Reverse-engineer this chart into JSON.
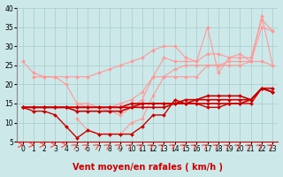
{
  "x": [
    0,
    1,
    2,
    3,
    4,
    5,
    6,
    7,
    8,
    9,
    10,
    11,
    12,
    13,
    14,
    15,
    16,
    17,
    18,
    19,
    20,
    21,
    22,
    23
  ],
  "series": [
    {
      "name": "light_top1",
      "color": "#ff9999",
      "lw": 0.8,
      "marker": "D",
      "ms": 2.0,
      "y": [
        26,
        23,
        22,
        22,
        22,
        22,
        22,
        23,
        24,
        25,
        26,
        27,
        29,
        30,
        30,
        27,
        26,
        35,
        23,
        27,
        27,
        27,
        37,
        34
      ]
    },
    {
      "name": "light_mid1",
      "color": "#ff9999",
      "lw": 0.8,
      "marker": "D",
      "ms": 2.0,
      "y": [
        null,
        22,
        22,
        22,
        20,
        15,
        14,
        14,
        14,
        15,
        16,
        18,
        22,
        27,
        26,
        26,
        26,
        28,
        28,
        27,
        28,
        26,
        35,
        34
      ]
    },
    {
      "name": "light_mid2",
      "color": "#ff9999",
      "lw": 0.8,
      "marker": "D",
      "ms": 2.0,
      "y": [
        null,
        null,
        null,
        null,
        null,
        15,
        15,
        14,
        13,
        12,
        14,
        16,
        22,
        22,
        24,
        25,
        25,
        25,
        25,
        26,
        26,
        26,
        26,
        25
      ]
    },
    {
      "name": "light_low",
      "color": "#ff9999",
      "lw": 0.8,
      "marker": "D",
      "ms": 2.0,
      "y": [
        null,
        null,
        null,
        null,
        null,
        11,
        8,
        7,
        7,
        7,
        10,
        11,
        17,
        22,
        22,
        22,
        22,
        25,
        25,
        25,
        25,
        26,
        38,
        25
      ]
    },
    {
      "name": "dark_bottom",
      "color": "#cc0000",
      "lw": 1.0,
      "marker": "D",
      "ms": 2.0,
      "y": [
        14,
        13,
        13,
        12,
        9,
        6,
        8,
        7,
        7,
        7,
        7,
        9,
        12,
        12,
        16,
        15,
        15,
        14,
        14,
        15,
        15,
        15,
        19,
        18
      ]
    },
    {
      "name": "dark_flat1",
      "color": "#cc0000",
      "lw": 1.2,
      "marker": "D",
      "ms": 2.0,
      "y": [
        14,
        14,
        14,
        14,
        14,
        14,
        14,
        14,
        14,
        14,
        15,
        15,
        15,
        15,
        15,
        16,
        16,
        17,
        17,
        17,
        17,
        16,
        19,
        19
      ]
    },
    {
      "name": "dark_flat2",
      "color": "#cc0000",
      "lw": 1.2,
      "marker": "D",
      "ms": 2.0,
      "y": [
        14,
        14,
        14,
        14,
        14,
        14,
        14,
        14,
        14,
        14,
        14,
        15,
        15,
        15,
        15,
        15,
        16,
        16,
        16,
        16,
        16,
        16,
        19,
        18
      ]
    },
    {
      "name": "dark_flat3",
      "color": "#cc0000",
      "lw": 1.2,
      "marker": "D",
      "ms": 2.0,
      "y": [
        14,
        14,
        14,
        14,
        14,
        13,
        13,
        13,
        13,
        13,
        14,
        14,
        14,
        14,
        15,
        15,
        15,
        15,
        15,
        15,
        15,
        16,
        19,
        18
      ]
    }
  ],
  "arrows": {
    "x": [
      0,
      1,
      2,
      3,
      4,
      5,
      6,
      7,
      8,
      9,
      10,
      11,
      12,
      13,
      14,
      15,
      16,
      17,
      18,
      19,
      20,
      21,
      22,
      23
    ],
    "angles_flat": [
      0,
      1,
      2,
      3,
      4
    ],
    "angles_diag": [
      5,
      6,
      7,
      8,
      9,
      10,
      11,
      12,
      13,
      14,
      15,
      16,
      17,
      18,
      19,
      20,
      21,
      22,
      23
    ],
    "color": "#ff4444"
  },
  "xlabel": "Vent moyen/en rafales ( km/h )",
  "xlim": [
    0,
    23
  ],
  "ylim": [
    5,
    40
  ],
  "yticks": [
    5,
    10,
    15,
    20,
    25,
    30,
    35,
    40
  ],
  "xticks": [
    0,
    1,
    2,
    3,
    4,
    5,
    6,
    7,
    8,
    9,
    10,
    11,
    12,
    13,
    14,
    15,
    16,
    17,
    18,
    19,
    20,
    21,
    22,
    23
  ],
  "bg_color": "#cce8e8",
  "grid_color": "#aacccc",
  "xlabel_color": "#cc0000",
  "xlabel_fontsize": 7,
  "tick_fontsize": 5.5
}
